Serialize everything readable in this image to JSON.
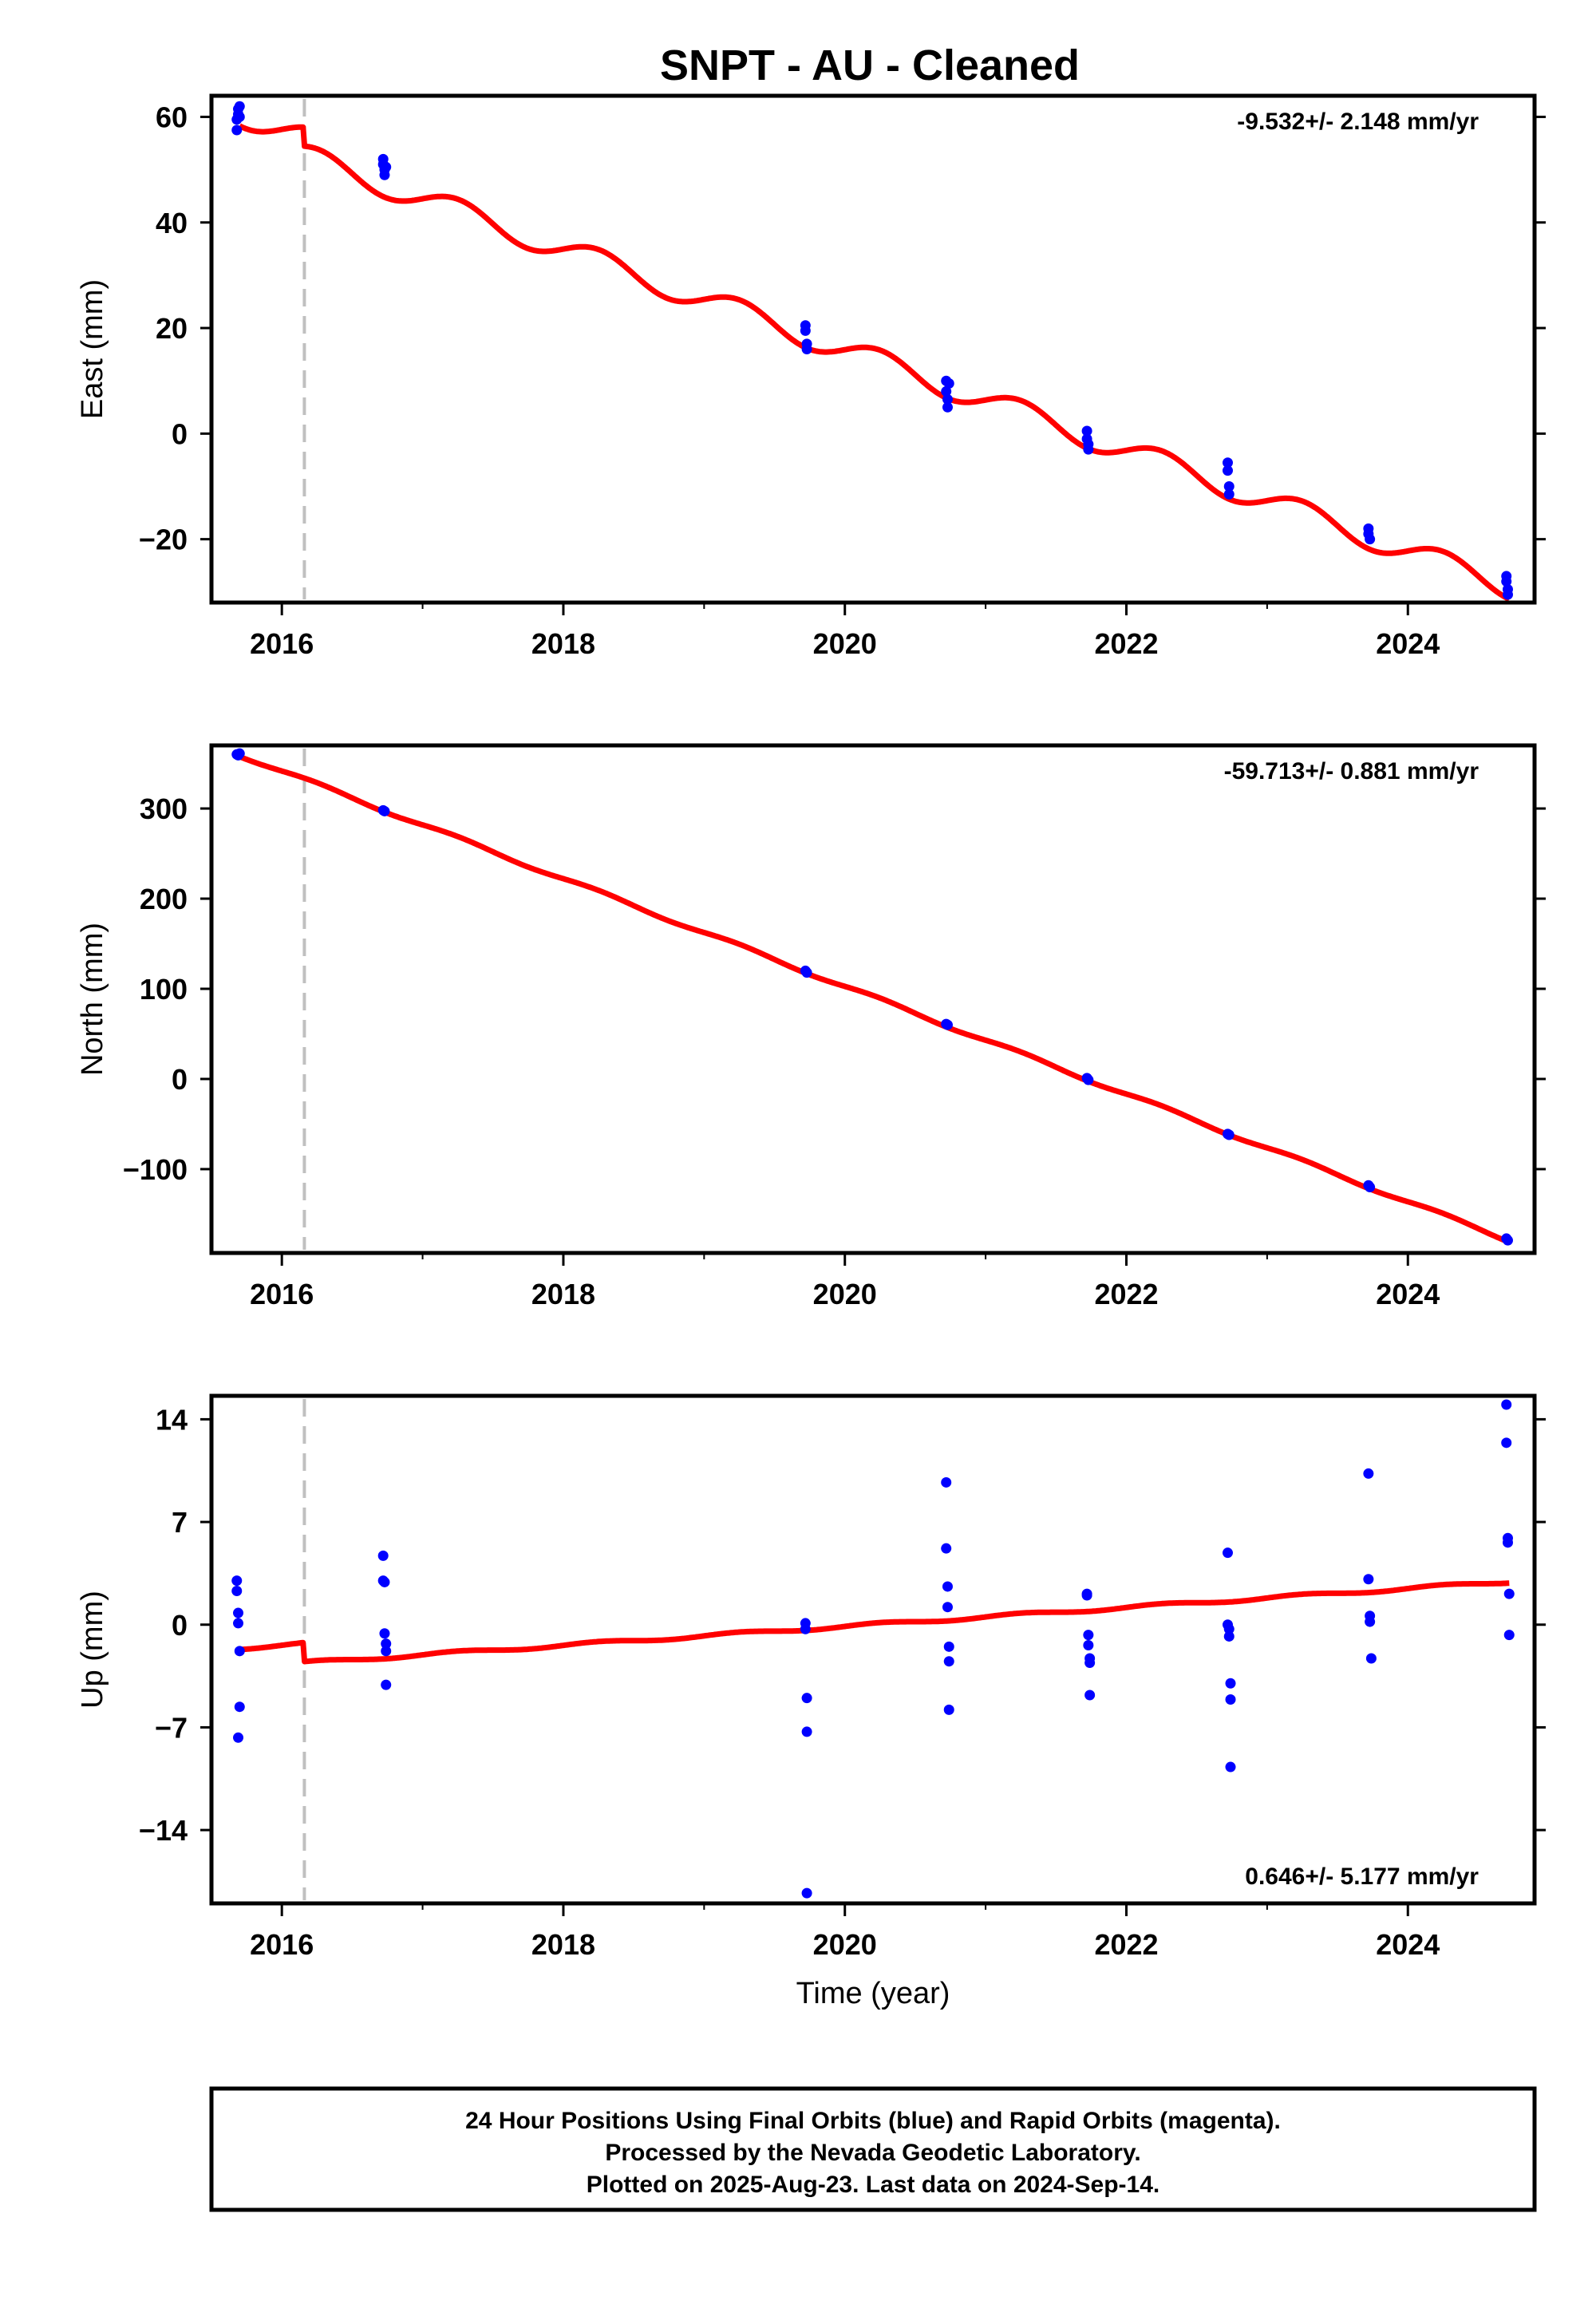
{
  "title": "SNPT  - AU - Cleaned",
  "colors": {
    "fit_line": "#ff0000",
    "data_points": "#0000ff",
    "offset_line": "#c0c0c0",
    "frame": "#000000"
  },
  "caption": {
    "line1": "24 Hour Positions Using Final Orbits (blue) and Rapid Orbits (magenta).",
    "line2": "Processed by the Nevada Geodetic Laboratory.",
    "line3": "Plotted on 2025-Aug-23. Last data on 2024-Sep-14."
  },
  "chart_data": [
    {
      "type": "scatter",
      "ylabel": "East (mm)",
      "xlabel": "",
      "rate_text": "-9.532+/- 2.148 mm/yr",
      "rate_position": "top-right",
      "xlim": [
        2015.5,
        2024.9
      ],
      "ylim": [
        -32,
        64
      ],
      "xticks": [
        2016,
        2018,
        2020,
        2022,
        2024
      ],
      "xtick_labels": [
        "2016",
        "2018",
        "2020",
        "2022",
        "2024"
      ],
      "yticks": [
        -20,
        0,
        20,
        40,
        60
      ],
      "ytick_labels": [
        "−20",
        "0",
        "20",
        "40",
        "60"
      ],
      "offset_epoch": 2016.16,
      "fit": {
        "x0": 2016.16,
        "y0": 52.5,
        "rate": -9.532,
        "annual_amp": 2.3,
        "annual_phase": 1.0,
        "pre_offset_shift": 3.6
      },
      "points": [
        [
          2015.68,
          57.5
        ],
        [
          2015.68,
          59.5
        ],
        [
          2015.69,
          60.5
        ],
        [
          2015.69,
          61.5
        ],
        [
          2015.7,
          62.0
        ],
        [
          2015.7,
          60.0
        ],
        [
          2016.72,
          52.0
        ],
        [
          2016.72,
          51.0
        ],
        [
          2016.73,
          50.0
        ],
        [
          2016.73,
          49.0
        ],
        [
          2016.74,
          50.5
        ],
        [
          2019.72,
          20.5
        ],
        [
          2019.72,
          19.5
        ],
        [
          2019.73,
          17.0
        ],
        [
          2019.73,
          16.0
        ],
        [
          2020.72,
          10.0
        ],
        [
          2020.72,
          8.0
        ],
        [
          2020.73,
          6.5
        ],
        [
          2020.73,
          5.0
        ],
        [
          2020.74,
          9.5
        ],
        [
          2021.72,
          0.5
        ],
        [
          2021.72,
          -1.0
        ],
        [
          2021.73,
          -2.0
        ],
        [
          2021.73,
          -3.0
        ],
        [
          2022.72,
          -5.5
        ],
        [
          2022.72,
          -7.0
        ],
        [
          2022.73,
          -10.0
        ],
        [
          2022.73,
          -11.5
        ],
        [
          2023.72,
          -18.0
        ],
        [
          2023.72,
          -19.0
        ],
        [
          2023.73,
          -20.0
        ],
        [
          2024.7,
          -27.0
        ],
        [
          2024.7,
          -28.0
        ],
        [
          2024.71,
          -29.5
        ],
        [
          2024.71,
          -30.5
        ]
      ]
    },
    {
      "type": "scatter",
      "ylabel": "North (mm)",
      "xlabel": "",
      "rate_text": "-59.713+/- 0.881 mm/yr",
      "rate_position": "top-right",
      "xlim": [
        2015.5,
        2024.9
      ],
      "ylim": [
        -193,
        370
      ],
      "xticks": [
        2016,
        2018,
        2020,
        2022,
        2024
      ],
      "xtick_labels": [
        "2016",
        "2018",
        "2020",
        "2022",
        "2024"
      ],
      "yticks": [
        -100,
        0,
        100,
        200,
        300
      ],
      "ytick_labels": [
        "−100",
        "0",
        "100",
        "200",
        "300"
      ],
      "offset_epoch": 2016.16,
      "fit": {
        "x0": 2016.16,
        "y0": 332.0,
        "rate": -59.713,
        "annual_amp": 2.0,
        "annual_phase": 1.0,
        "pre_offset_shift": 0
      },
      "points": [
        [
          2015.68,
          360.0
        ],
        [
          2015.69,
          359.0
        ],
        [
          2015.7,
          361.0
        ],
        [
          2016.72,
          298.0
        ],
        [
          2016.73,
          297.0
        ],
        [
          2019.72,
          120.0
        ],
        [
          2019.73,
          118.0
        ],
        [
          2020.72,
          61.0
        ],
        [
          2020.73,
          60.0
        ],
        [
          2021.72,
          1.0
        ],
        [
          2021.73,
          -1.0
        ],
        [
          2022.72,
          -61.0
        ],
        [
          2022.73,
          -62.0
        ],
        [
          2023.72,
          -118.0
        ],
        [
          2023.73,
          -120.0
        ],
        [
          2024.7,
          -177.0
        ],
        [
          2024.71,
          -179.0
        ]
      ]
    },
    {
      "type": "scatter",
      "ylabel": "Up (mm)",
      "xlabel": "Time (year)",
      "rate_text": "0.646+/- 5.177 mm/yr",
      "rate_position": "bottom-right",
      "xlim": [
        2015.5,
        2024.9
      ],
      "ylim": [
        -19,
        15.6
      ],
      "xticks": [
        2016,
        2018,
        2020,
        2022,
        2024
      ],
      "xtick_labels": [
        "2016",
        "2018",
        "2020",
        "2022",
        "2024"
      ],
      "yticks": [
        -14,
        -7,
        0,
        7,
        14
      ],
      "ytick_labels": [
        "−14",
        "−7",
        "0",
        "7",
        "14"
      ],
      "offset_epoch": 2016.16,
      "fit": {
        "x0": 2016.16,
        "y0": -2.6,
        "rate": 0.646,
        "annual_amp": 0.1,
        "annual_phase": 1.0,
        "pre_offset_shift": 1.3
      },
      "points": [
        [
          2015.68,
          3.0
        ],
        [
          2015.68,
          2.3
        ],
        [
          2015.69,
          0.8
        ],
        [
          2015.69,
          0.1
        ],
        [
          2015.7,
          -1.8
        ],
        [
          2015.7,
          -5.6
        ],
        [
          2015.69,
          -7.7
        ],
        [
          2016.72,
          4.7
        ],
        [
          2016.72,
          3.0
        ],
        [
          2016.73,
          2.9
        ],
        [
          2016.73,
          -0.6
        ],
        [
          2016.74,
          -1.3
        ],
        [
          2016.74,
          -1.8
        ],
        [
          2016.74,
          -4.1
        ],
        [
          2019.72,
          0.1
        ],
        [
          2019.72,
          -0.3
        ],
        [
          2019.73,
          -5.0
        ],
        [
          2019.73,
          -7.3
        ],
        [
          2019.73,
          -18.3
        ],
        [
          2020.72,
          9.7
        ],
        [
          2020.72,
          5.2
        ],
        [
          2020.73,
          2.6
        ],
        [
          2020.73,
          1.2
        ],
        [
          2020.74,
          -1.5
        ],
        [
          2020.74,
          -2.5
        ],
        [
          2020.74,
          -5.8
        ],
        [
          2021.72,
          2.1
        ],
        [
          2021.72,
          2.0
        ],
        [
          2021.73,
          -0.7
        ],
        [
          2021.73,
          -1.4
        ],
        [
          2021.74,
          -2.3
        ],
        [
          2021.74,
          -2.6
        ],
        [
          2021.74,
          -4.8
        ],
        [
          2022.72,
          4.9
        ],
        [
          2022.72,
          0.0
        ],
        [
          2022.73,
          -0.3
        ],
        [
          2022.73,
          -0.8
        ],
        [
          2022.74,
          -4.0
        ],
        [
          2022.74,
          -5.1
        ],
        [
          2022.74,
          -9.7
        ],
        [
          2023.72,
          10.3
        ],
        [
          2023.72,
          3.1
        ],
        [
          2023.73,
          0.6
        ],
        [
          2023.73,
          0.2
        ],
        [
          2023.74,
          -2.3
        ],
        [
          2024.7,
          15.0
        ],
        [
          2024.7,
          12.4
        ],
        [
          2024.71,
          5.9
        ],
        [
          2024.71,
          5.6
        ],
        [
          2024.72,
          2.1
        ],
        [
          2024.72,
          -0.7
        ]
      ]
    }
  ]
}
